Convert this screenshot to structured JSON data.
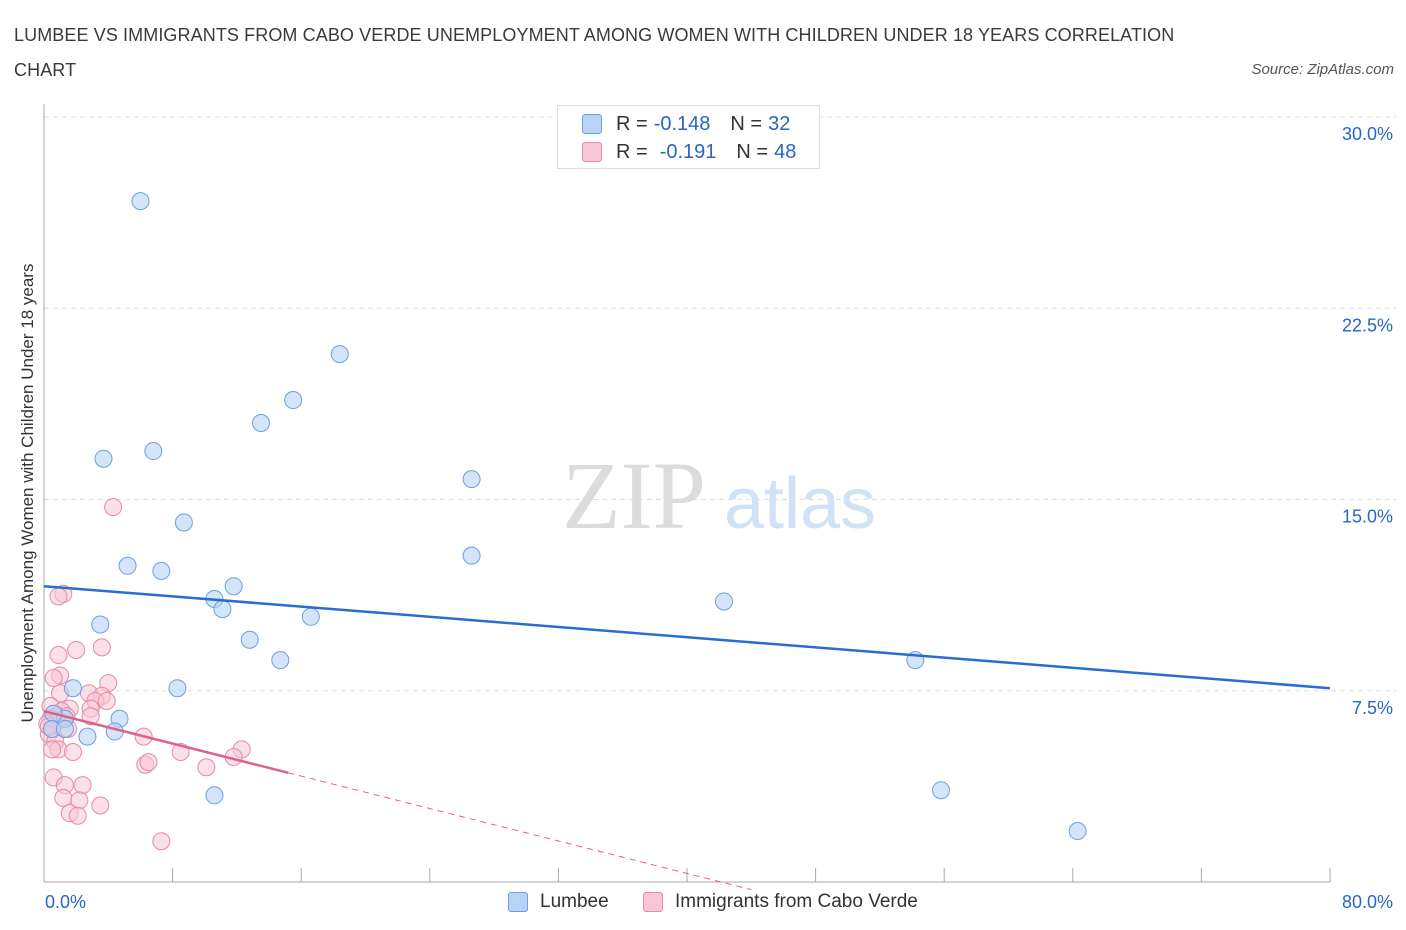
{
  "header": {
    "title": "LUMBEE VS IMMIGRANTS FROM CABO VERDE UNEMPLOYMENT AMONG WOMEN WITH CHILDREN UNDER 18 YEARS CORRELATION CHART",
    "source": "Source: ZipAtlas.com"
  },
  "watermark": {
    "zip": "ZIP",
    "atlas": "atlas"
  },
  "legend": {
    "r_label": "R =",
    "n_label": "N =",
    "series": [
      {
        "r": "-0.148",
        "n": "32"
      },
      {
        "r": "-0.191",
        "n": "48"
      }
    ]
  },
  "colors": {
    "blue_fill": "#b8d3f5",
    "blue_stroke": "#6f9fdc",
    "blue_line": "#2a6dd0",
    "pink_fill": "#f8c6d6",
    "pink_stroke": "#e68aa8",
    "pink_line": "#e0608d",
    "axis_text": "#2a66c2",
    "grid": "#dddddd"
  },
  "chart_data": {
    "type": "scatter",
    "title": "LUMBEE VS IMMIGRANTS FROM CABO VERDE UNEMPLOYMENT AMONG WOMEN WITH CHILDREN UNDER 18 YEARS CORRELATION CHART",
    "xlabel": "",
    "ylabel": "Unemployment Among Women with Children Under 18 years",
    "xlim": [
      0,
      80
    ],
    "ylim": [
      0,
      30
    ],
    "x_tick_labels": [
      "0.0%",
      "80.0%"
    ],
    "y_ticks": [
      7.5,
      15.0,
      22.5,
      30.0
    ],
    "y_tick_labels": [
      "7.5%",
      "15.0%",
      "22.5%",
      "30.0%"
    ],
    "grid": true,
    "legend_position": "bottom-center",
    "series": [
      {
        "name": "Lumbee",
        "r": -0.148,
        "n": 32,
        "trend": {
          "x": [
            0,
            80
          ],
          "y": [
            11.6,
            7.6
          ],
          "solid_to": 80
        },
        "points": [
          [
            6.0,
            26.7
          ],
          [
            18.4,
            20.7
          ],
          [
            15.5,
            18.9
          ],
          [
            13.5,
            18.0
          ],
          [
            6.8,
            16.9
          ],
          [
            3.7,
            16.6
          ],
          [
            26.6,
            15.8
          ],
          [
            8.7,
            14.1
          ],
          [
            26.6,
            12.8
          ],
          [
            5.2,
            12.4
          ],
          [
            7.3,
            12.2
          ],
          [
            11.8,
            11.6
          ],
          [
            10.6,
            11.1
          ],
          [
            11.1,
            10.7
          ],
          [
            42.3,
            11.0
          ],
          [
            16.6,
            10.4
          ],
          [
            3.5,
            10.1
          ],
          [
            12.8,
            9.5
          ],
          [
            14.7,
            8.7
          ],
          [
            54.2,
            8.7
          ],
          [
            8.3,
            7.6
          ],
          [
            1.8,
            7.6
          ],
          [
            1.3,
            6.4
          ],
          [
            4.7,
            6.4
          ],
          [
            0.6,
            6.6
          ],
          [
            0.5,
            6.0
          ],
          [
            1.3,
            6.0
          ],
          [
            4.4,
            5.9
          ],
          [
            2.7,
            5.7
          ],
          [
            10.6,
            3.4
          ],
          [
            55.8,
            3.6
          ],
          [
            64.3,
            2.0
          ]
        ]
      },
      {
        "name": "Immigrants from Cabo Verde",
        "r": -0.191,
        "n": 48,
        "trend": {
          "x": [
            0,
            44
          ],
          "y": [
            6.7,
            -0.3
          ],
          "solid_to": 15.2
        },
        "points": [
          [
            4.3,
            14.7
          ],
          [
            1.2,
            11.3
          ],
          [
            0.9,
            11.2
          ],
          [
            3.6,
            9.2
          ],
          [
            0.9,
            8.9
          ],
          [
            2.0,
            9.1
          ],
          [
            1.0,
            8.1
          ],
          [
            0.6,
            8.0
          ],
          [
            4.0,
            7.8
          ],
          [
            1.0,
            7.4
          ],
          [
            2.8,
            7.4
          ],
          [
            3.6,
            7.3
          ],
          [
            3.2,
            7.1
          ],
          [
            3.9,
            7.1
          ],
          [
            0.4,
            6.9
          ],
          [
            1.6,
            6.8
          ],
          [
            2.9,
            6.8
          ],
          [
            0.7,
            6.5
          ],
          [
            1.1,
            6.7
          ],
          [
            1.4,
            6.5
          ],
          [
            0.4,
            6.4
          ],
          [
            0.8,
            6.3
          ],
          [
            2.9,
            6.5
          ],
          [
            0.2,
            6.2
          ],
          [
            0.5,
            6.0
          ],
          [
            1.5,
            6.0
          ],
          [
            0.3,
            5.8
          ],
          [
            6.2,
            5.7
          ],
          [
            0.7,
            5.5
          ],
          [
            0.9,
            5.2
          ],
          [
            0.5,
            5.2
          ],
          [
            1.8,
            5.1
          ],
          [
            8.5,
            5.1
          ],
          [
            12.3,
            5.2
          ],
          [
            11.8,
            4.9
          ],
          [
            6.3,
            4.6
          ],
          [
            6.5,
            4.7
          ],
          [
            10.1,
            4.5
          ],
          [
            0.6,
            4.1
          ],
          [
            2.4,
            3.8
          ],
          [
            1.3,
            3.8
          ],
          [
            1.2,
            3.3
          ],
          [
            2.2,
            3.2
          ],
          [
            3.5,
            3.0
          ],
          [
            1.6,
            2.7
          ],
          [
            2.1,
            2.6
          ],
          [
            7.3,
            1.6
          ],
          [
            0.3,
            6.1
          ]
        ]
      }
    ]
  },
  "bottom_legend": {
    "items": [
      "Lumbee",
      "Immigrants from Cabo Verde"
    ]
  }
}
